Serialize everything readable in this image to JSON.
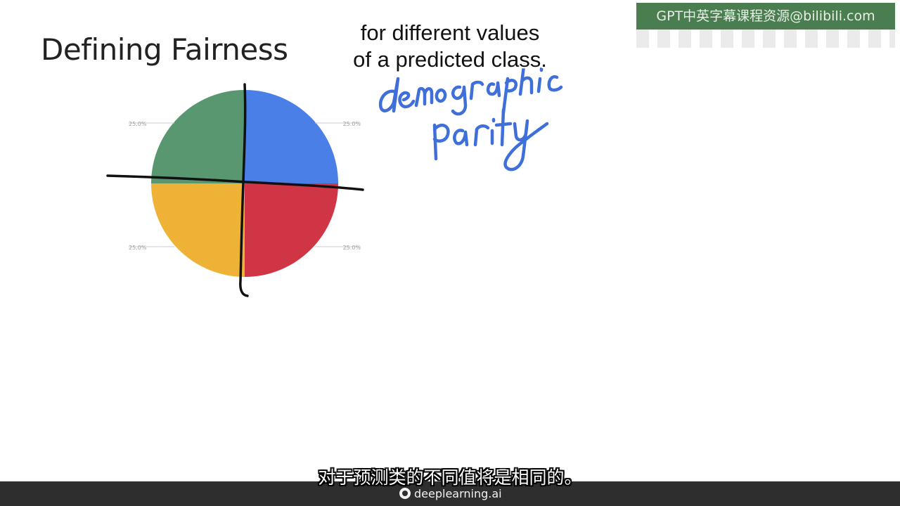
{
  "slide": {
    "title": "Defining Fairness"
  },
  "subtitles": {
    "english_lines": [
      "for different values",
      "of a predicted class."
    ],
    "chinese": "对于预测类的不同值将是相同的。"
  },
  "watermark": {
    "text": "GPT中英字幕课程资源@bilibili.com"
  },
  "annotation": {
    "handwriting": [
      "demographic",
      "parity"
    ],
    "ink_color_blue": "#3f6fd8",
    "ink_color_black": "#111111"
  },
  "brand": {
    "name": "deeplearning.ai"
  },
  "chart_data": {
    "type": "pie",
    "slices": [
      {
        "label": "25.0%",
        "value": 25,
        "color": "#4a7fe8"
      },
      {
        "label": "25.0%",
        "value": 25,
        "color": "#cf3544"
      },
      {
        "label": "25.0%",
        "value": 25,
        "color": "#eeb336"
      },
      {
        "label": "25.0%",
        "value": 25,
        "color": "#589770"
      }
    ],
    "start_angle_deg": 0,
    "direction": "clockwise",
    "legend": "none"
  }
}
